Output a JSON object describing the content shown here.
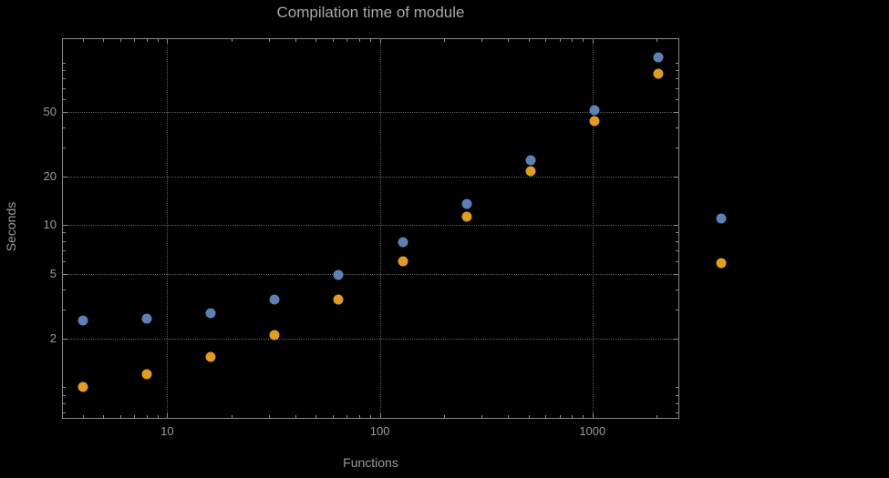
{
  "colors": {
    "background": "#000000",
    "frame": "#8a8a8a",
    "grid": "#5f5f5f",
    "text": "#9b9b9b",
    "series1": "#5e81b5",
    "series2": "#e19c24"
  },
  "chart_data": {
    "type": "scatter",
    "title": "Compilation time of module",
    "xlabel": "Functions",
    "ylabel": "Seconds",
    "x_scale": "log",
    "y_scale": "log",
    "xlim": [
      3.2,
      2560
    ],
    "ylim": [
      0.64,
      142
    ],
    "grid": "dotted",
    "x_ticks": [
      {
        "value": 10,
        "label": "10"
      },
      {
        "value": 100,
        "label": "100"
      },
      {
        "value": 1000,
        "label": "1000"
      }
    ],
    "y_ticks": [
      {
        "value": 2,
        "label": "2"
      },
      {
        "value": 5,
        "label": "5"
      },
      {
        "value": 10,
        "label": "10"
      },
      {
        "value": 20,
        "label": "20"
      },
      {
        "value": 50,
        "label": "50"
      }
    ],
    "series": [
      {
        "name": "blue",
        "color": "#5e81b5",
        "points": [
          [
            4,
            2.6
          ],
          [
            8,
            2.65
          ],
          [
            16,
            2.85
          ],
          [
            32,
            3.5
          ],
          [
            64,
            4.9
          ],
          [
            128,
            7.9
          ],
          [
            256,
            13.5
          ],
          [
            512,
            25
          ],
          [
            1024,
            51
          ],
          [
            2048,
            108
          ]
        ]
      },
      {
        "name": "orange",
        "color": "#e19c24",
        "points": [
          [
            4,
            1.0
          ],
          [
            8,
            1.2
          ],
          [
            16,
            1.55
          ],
          [
            32,
            2.1
          ],
          [
            64,
            3.5
          ],
          [
            128,
            6.0
          ],
          [
            256,
            11.3
          ],
          [
            512,
            21.5
          ],
          [
            1024,
            44
          ],
          [
            2048,
            86
          ]
        ]
      }
    ],
    "legend": {
      "position": "right-outside",
      "markers": [
        {
          "series": "blue",
          "color": "#5e81b5",
          "label": ""
        },
        {
          "series": "orange",
          "color": "#e19c24",
          "label": ""
        }
      ]
    }
  }
}
